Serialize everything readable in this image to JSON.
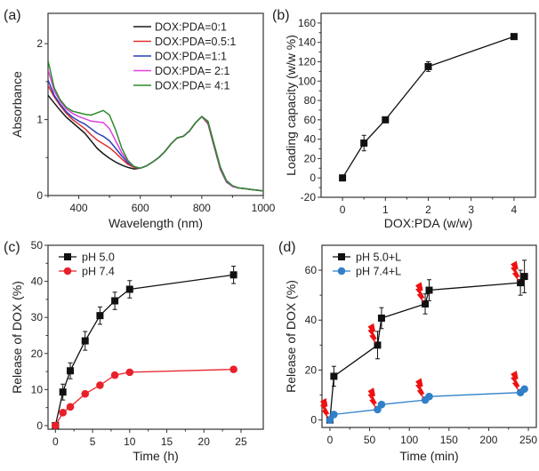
{
  "chart_data": [
    {
      "id": "a",
      "panel_label": "(a)",
      "type": "line",
      "title": "",
      "xlabel": "Wavelength (nm)",
      "ylabel": "Absorbance",
      "xlim": [
        300,
        1000
      ],
      "ylim": [
        0,
        2.4
      ],
      "xticks": [
        400,
        600,
        800,
        1000
      ],
      "xminor": [
        300,
        500,
        700,
        900
      ],
      "yticks": [
        0,
        1,
        2
      ],
      "legend": "top-right",
      "series": [
        {
          "name": "DOX:PDA=0:1",
          "color": "#1a1a1a",
          "x": [
            300,
            320,
            340,
            360,
            380,
            400,
            420,
            440,
            460,
            480,
            500,
            520,
            540,
            560,
            580,
            600,
            620,
            640,
            660,
            680,
            700,
            720,
            740,
            760,
            780,
            800,
            820,
            840,
            860,
            880,
            900,
            920,
            940,
            960,
            980,
            1000
          ],
          "y": [
            1.32,
            1.22,
            1.12,
            1.03,
            0.96,
            0.89,
            0.82,
            0.72,
            0.62,
            0.55,
            0.49,
            0.44,
            0.4,
            0.37,
            0.35,
            0.36,
            0.39,
            0.44,
            0.5,
            0.58,
            0.68,
            0.76,
            0.78,
            0.85,
            0.96,
            1.04,
            0.95,
            0.65,
            0.35,
            0.18,
            0.12,
            0.1,
            0.09,
            0.08,
            0.07,
            0.06
          ]
        },
        {
          "name": "DOX:PDA=0.5:1",
          "color": "#e03030",
          "x": [
            300,
            320,
            340,
            360,
            380,
            400,
            420,
            440,
            460,
            480,
            500,
            520,
            540,
            560,
            580,
            600,
            620,
            640,
            660,
            680,
            700,
            720,
            740,
            760,
            780,
            800,
            820,
            840,
            860,
            880,
            900,
            920,
            940,
            960,
            980,
            1000
          ],
          "y": [
            1.45,
            1.3,
            1.18,
            1.08,
            1.0,
            0.94,
            0.88,
            0.8,
            0.73,
            0.68,
            0.63,
            0.56,
            0.48,
            0.41,
            0.37,
            0.36,
            0.39,
            0.44,
            0.5,
            0.58,
            0.68,
            0.76,
            0.78,
            0.85,
            0.96,
            1.04,
            0.96,
            0.66,
            0.36,
            0.19,
            0.12,
            0.1,
            0.09,
            0.08,
            0.07,
            0.06
          ]
        },
        {
          "name": "DOX:PDA=1:1",
          "color": "#2a3fb5",
          "x": [
            300,
            320,
            340,
            360,
            380,
            400,
            420,
            440,
            460,
            480,
            500,
            520,
            540,
            560,
            580,
            600,
            620,
            640,
            660,
            680,
            700,
            720,
            740,
            760,
            780,
            800,
            820,
            840,
            860,
            880,
            900,
            920,
            940,
            960,
            980,
            1000
          ],
          "y": [
            1.52,
            1.32,
            1.2,
            1.1,
            1.03,
            0.98,
            0.94,
            0.88,
            0.82,
            0.78,
            0.72,
            0.62,
            0.52,
            0.43,
            0.38,
            0.36,
            0.39,
            0.44,
            0.5,
            0.58,
            0.68,
            0.76,
            0.78,
            0.85,
            0.96,
            1.04,
            0.97,
            0.67,
            0.37,
            0.19,
            0.12,
            0.1,
            0.09,
            0.08,
            0.07,
            0.06
          ]
        },
        {
          "name": "DOX:PDA= 2:1",
          "color": "#e040e0",
          "x": [
            300,
            320,
            340,
            360,
            380,
            400,
            420,
            440,
            460,
            480,
            500,
            520,
            540,
            560,
            580,
            600,
            620,
            640,
            660,
            680,
            700,
            720,
            740,
            760,
            780,
            800,
            820,
            840,
            860,
            880,
            900,
            920,
            940,
            960,
            980,
            1000
          ],
          "y": [
            1.66,
            1.38,
            1.24,
            1.14,
            1.08,
            1.04,
            1.01,
            0.98,
            0.97,
            0.96,
            0.88,
            0.72,
            0.56,
            0.45,
            0.38,
            0.36,
            0.39,
            0.44,
            0.5,
            0.58,
            0.68,
            0.76,
            0.78,
            0.85,
            0.96,
            1.04,
            0.97,
            0.67,
            0.37,
            0.19,
            0.12,
            0.1,
            0.09,
            0.08,
            0.07,
            0.06
          ]
        },
        {
          "name": "DOX:PDA= 4:1",
          "color": "#2e8b2e",
          "x": [
            300,
            320,
            340,
            360,
            380,
            400,
            420,
            440,
            460,
            480,
            500,
            520,
            540,
            560,
            580,
            600,
            620,
            640,
            660,
            680,
            700,
            720,
            740,
            760,
            780,
            800,
            820,
            840,
            860,
            880,
            900,
            920,
            940,
            960,
            980,
            1000
          ],
          "y": [
            1.78,
            1.42,
            1.26,
            1.16,
            1.11,
            1.09,
            1.07,
            1.06,
            1.09,
            1.12,
            1.06,
            0.86,
            0.62,
            0.46,
            0.38,
            0.36,
            0.39,
            0.44,
            0.5,
            0.58,
            0.68,
            0.76,
            0.78,
            0.85,
            0.96,
            1.04,
            0.98,
            0.68,
            0.38,
            0.2,
            0.13,
            0.1,
            0.09,
            0.08,
            0.07,
            0.06
          ]
        }
      ]
    },
    {
      "id": "b",
      "panel_label": "(b)",
      "type": "line",
      "title": "",
      "xlabel": "DOX:PDA (w/w)",
      "ylabel": "Loading capacity (w/w %)",
      "xlim": [
        -0.5,
        4.5
      ],
      "ylim": [
        -20,
        170
      ],
      "xticks": [
        0,
        1,
        2,
        3,
        4
      ],
      "yticks": [
        -20,
        0,
        20,
        40,
        60,
        80,
        100,
        120,
        140,
        160
      ],
      "legend": "none",
      "series": [
        {
          "name": "Loading capacity",
          "color": "#111111",
          "marker": "square",
          "x": [
            0,
            0.5,
            1,
            2,
            4
          ],
          "y": [
            0,
            36,
            60,
            115,
            146
          ],
          "err": [
            1,
            8,
            2,
            5,
            2
          ]
        }
      ]
    },
    {
      "id": "c",
      "panel_label": "(c)",
      "type": "line",
      "title": "",
      "xlabel": "Time (h)",
      "ylabel": "Release of DOX (%)",
      "xlim": [
        -1,
        28
      ],
      "ylim": [
        -1,
        50
      ],
      "xticks": [
        0,
        5,
        10,
        15,
        20,
        25
      ],
      "yticks": [
        0,
        10,
        20,
        30,
        40,
        50
      ],
      "legend": "top-left",
      "series": [
        {
          "name": "pH 5.0",
          "color": "#111111",
          "marker": "square",
          "x": [
            0,
            1,
            2,
            4,
            6,
            8,
            10,
            24
          ],
          "y": [
            0,
            9.3,
            15.2,
            23.5,
            30.5,
            34.6,
            37.8,
            41.8
          ],
          "err": [
            0,
            2.2,
            2.2,
            2.6,
            2.4,
            2.4,
            2.4,
            2.4
          ]
        },
        {
          "name": "pH 7.4",
          "color": "#e8202a",
          "marker": "circle",
          "x": [
            0,
            1,
            2,
            4,
            6,
            8,
            10,
            24
          ],
          "y": [
            0,
            3.6,
            5.2,
            8.8,
            11.2,
            14.0,
            14.8,
            15.6
          ],
          "err": [
            0,
            0,
            0,
            0,
            0,
            0,
            0,
            0
          ]
        }
      ]
    },
    {
      "id": "d",
      "panel_label": "(d)",
      "type": "line",
      "title": "",
      "xlabel": "Time (min)",
      "ylabel": "Release of DOX (%)",
      "xlim": [
        -10,
        260
      ],
      "ylim": [
        -3,
        70
      ],
      "xticks": [
        0,
        50,
        100,
        150,
        200,
        250
      ],
      "yticks": [
        0,
        20,
        40,
        60
      ],
      "legend": "top-left",
      "annotations": "red laser-irradiation (lightning) icons at t = 0, 60, 120, 240 min on both curves",
      "laser_times": [
        0,
        60,
        120,
        240
      ],
      "series": [
        {
          "name": "pH 5.0+L",
          "color": "#111111",
          "marker": "square",
          "x": [
            0,
            5,
            60,
            65,
            120,
            125,
            240,
            245
          ],
          "y": [
            0,
            17.5,
            30,
            40.8,
            46.5,
            52,
            55,
            57.5
          ],
          "err": [
            0,
            4,
            5.5,
            4.2,
            4,
            4.2,
            5,
            6.5
          ]
        },
        {
          "name": "pH 7.4+L",
          "color": "#2f80c8",
          "marker": "circle",
          "x": [
            0,
            5,
            60,
            65,
            120,
            125,
            240,
            245
          ],
          "y": [
            0,
            2.2,
            4.2,
            6.2,
            8.0,
            9.4,
            11,
            12.4
          ],
          "err": [
            0,
            0,
            0,
            0,
            0,
            0,
            0,
            0
          ]
        }
      ]
    }
  ]
}
